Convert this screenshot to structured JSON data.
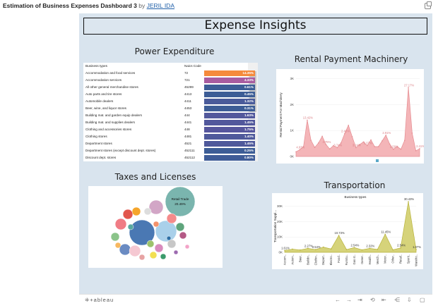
{
  "viz": {
    "title": "Estimation of Business Expenses Dashboard 3",
    "by": "by",
    "author": "JERIL IDA"
  },
  "dashboard": {
    "header": "Expense Insights",
    "power": {
      "title": "Power Expenditure",
      "columns": [
        "Business types",
        "Naics Code",
        ""
      ],
      "rows": [
        {
          "type": "Accommodation and food services",
          "naics": "72",
          "pct": "14.35%",
          "color": "#f58a3c"
        },
        {
          "type": "Accommodation services",
          "naics": "721",
          "pct": "4.33%",
          "color": "#a85ca0"
        },
        {
          "type": "All other general merchandise stores",
          "naics": "45299",
          "pct": "0.61%",
          "color": "#3d5d96"
        },
        {
          "type": "Auto parts and tire stores",
          "naics": "4413",
          "pct": "0.45%",
          "color": "#3d5d96"
        },
        {
          "type": "Automobile dealers",
          "naics": "4411",
          "pct": "1.32%",
          "color": "#4a5b9a"
        },
        {
          "type": "Beer, wine, and liquor stores",
          "naics": "4453",
          "pct": "0.31%",
          "color": "#3d5d96"
        },
        {
          "type": "Building mat. and garden equip dealers",
          "naics": "444",
          "pct": "1.63%",
          "color": "#52589c"
        },
        {
          "type": "Building mat. and supplies dealers",
          "naics": "4441",
          "pct": "1.45%",
          "color": "#52589c"
        },
        {
          "type": "Clothing and accessories stores",
          "naics": "448",
          "pct": "1.75%",
          "color": "#56569d"
        },
        {
          "type": "Clothing stores",
          "naics": "4481",
          "pct": "1.40%",
          "color": "#4f599b"
        },
        {
          "type": "Department stores",
          "naics": "4521",
          "pct": "1.45%",
          "color": "#4f599b"
        },
        {
          "type": "Department stores (except discount dept. stores)",
          "naics": "452111",
          "pct": "0.25%",
          "color": "#3d5d96"
        },
        {
          "type": "Discount dept. stores",
          "naics": "452112",
          "pct": "0.80%",
          "color": "#3f5c97"
        }
      ]
    },
    "rental": {
      "title": "Rental Payment Machinery",
      "ylabel": "Rental Payment For Machinery"
    },
    "taxes": {
      "title": "Taxes and Licenses",
      "big_label": "Retail Trade",
      "big_value": "20.49%"
    },
    "transport": {
      "title": "Transportation",
      "legend_title": "Business types",
      "ylabel": "Transportation Suppl..."
    }
  },
  "chart_data": [
    {
      "type": "area",
      "title": "Rental Payment Machinery",
      "ylabel": "Rental Payment For Machinery",
      "yticks": [
        "0K",
        "1K",
        "2K",
        "3K"
      ],
      "ylim": [
        0,
        3200
      ],
      "values": [
        180,
        260,
        380,
        1400,
        620,
        350,
        520,
        780,
        460,
        290,
        420,
        340,
        520,
        880,
        1200,
        760,
        340,
        460,
        560,
        420,
        640,
        380,
        380,
        600,
        820,
        480,
        280,
        380,
        280,
        620,
        2650,
        900,
        220,
        300
      ],
      "annotations": [
        {
          "label": "13.42%",
          "index": 3
        },
        {
          "label": "4.75%",
          "index": 8
        },
        {
          "label": "3.74%",
          "index": 11
        },
        {
          "label": "4.93%",
          "index": 1
        },
        {
          "label": "2.42%",
          "index": 13
        },
        {
          "label": "3.24%",
          "index": 16
        },
        {
          "label": "5.07%",
          "index": 19
        },
        {
          "label": "2.59%",
          "index": 26
        },
        {
          "label": "2.91%",
          "index": 24
        },
        {
          "label": "27.17%",
          "index": 30
        },
        {
          "label": "2.41%",
          "index": 33
        }
      ]
    },
    {
      "type": "area",
      "title": "Transportation",
      "ylabel": "Transportation Suppl...",
      "yticks": [
        "0K",
        "10K",
        "20K",
        "30K"
      ],
      "ylim": [
        0,
        34000
      ],
      "categories": [
        "Accom..",
        "Autom..",
        "Beer..",
        "Buildin..",
        "Clothin..",
        "Depart..",
        "Electro..",
        "Food..",
        "Furnitu..",
        "Gas st..",
        "Gener..",
        "Health..",
        "Merch..",
        "Motor..",
        "Other..",
        "Retail..",
        "Sporti..",
        "Wareho.."
      ],
      "values": [
        1200,
        2100,
        1500,
        2600,
        1800,
        3400,
        2200,
        11000,
        1800,
        3100,
        1600,
        2600,
        1900,
        11800,
        1600,
        2900,
        33000,
        1800
      ],
      "annotations": [
        {
          "label": "1.61%",
          "index": 0
        },
        {
          "label": "2.27%",
          "index": 3
        },
        {
          "label": "2.54%",
          "index": 4
        },
        {
          "label": "10.73%",
          "index": 7
        },
        {
          "label": "2.54%",
          "index": 9
        },
        {
          "label": "2.32%",
          "index": 11
        },
        {
          "label": "11.45%",
          "index": 13
        },
        {
          "label": "2.54%",
          "index": 15
        },
        {
          "label": "30.43%",
          "index": 16
        },
        {
          "label": "1.07%",
          "index": 17
        }
      ]
    },
    {
      "type": "scatter",
      "title": "Taxes and Licenses",
      "bubbles": [
        {
          "label": "Retail Trade",
          "value": "20.49%",
          "color": "#7ab5ae"
        }
      ]
    }
  ]
}
